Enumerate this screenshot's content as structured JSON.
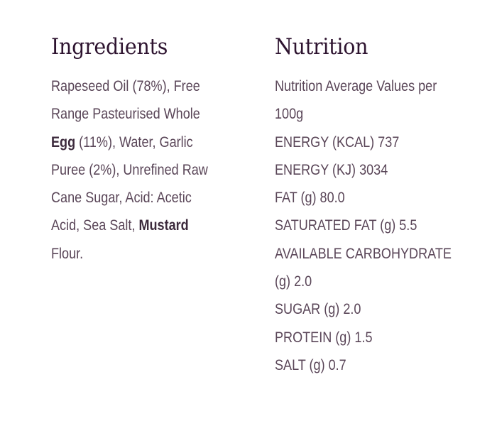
{
  "ingredients": {
    "heading": "Ingredients",
    "lines": [
      {
        "parts": [
          {
            "text": "Rapeseed Oil (78%), Free",
            "bold": false
          }
        ]
      },
      {
        "parts": [
          {
            "text": "Range Pasteurised Whole",
            "bold": false
          }
        ]
      },
      {
        "parts": [
          {
            "text": "Egg",
            "bold": true
          },
          {
            "text": " (11%), Water, Garlic",
            "bold": false
          }
        ]
      },
      {
        "parts": [
          {
            "text": "Puree (2%), Unrefined Raw",
            "bold": false
          }
        ]
      },
      {
        "parts": [
          {
            "text": "Cane Sugar, Acid: Acetic",
            "bold": false
          }
        ]
      },
      {
        "parts": [
          {
            "text": "Acid, Sea Salt, ",
            "bold": false
          },
          {
            "text": "Mustard",
            "bold": true
          }
        ]
      },
      {
        "parts": [
          {
            "text": "Flour.",
            "bold": false
          }
        ]
      }
    ]
  },
  "nutrition": {
    "heading": "Nutrition",
    "lines": [
      "Nutrition Average Values per",
      "100g",
      "ENERGY (KCAL) 737",
      "ENERGY (KJ) 3034",
      "FAT (g) 80.0",
      "SATURATED FAT (g) 5.5",
      "AVAILABLE CARBOHYDRATE",
      "(g) 2.0",
      "SUGAR (g) 2.0",
      "PROTEIN (g) 1.5",
      "SALT (g) 0.7"
    ]
  }
}
